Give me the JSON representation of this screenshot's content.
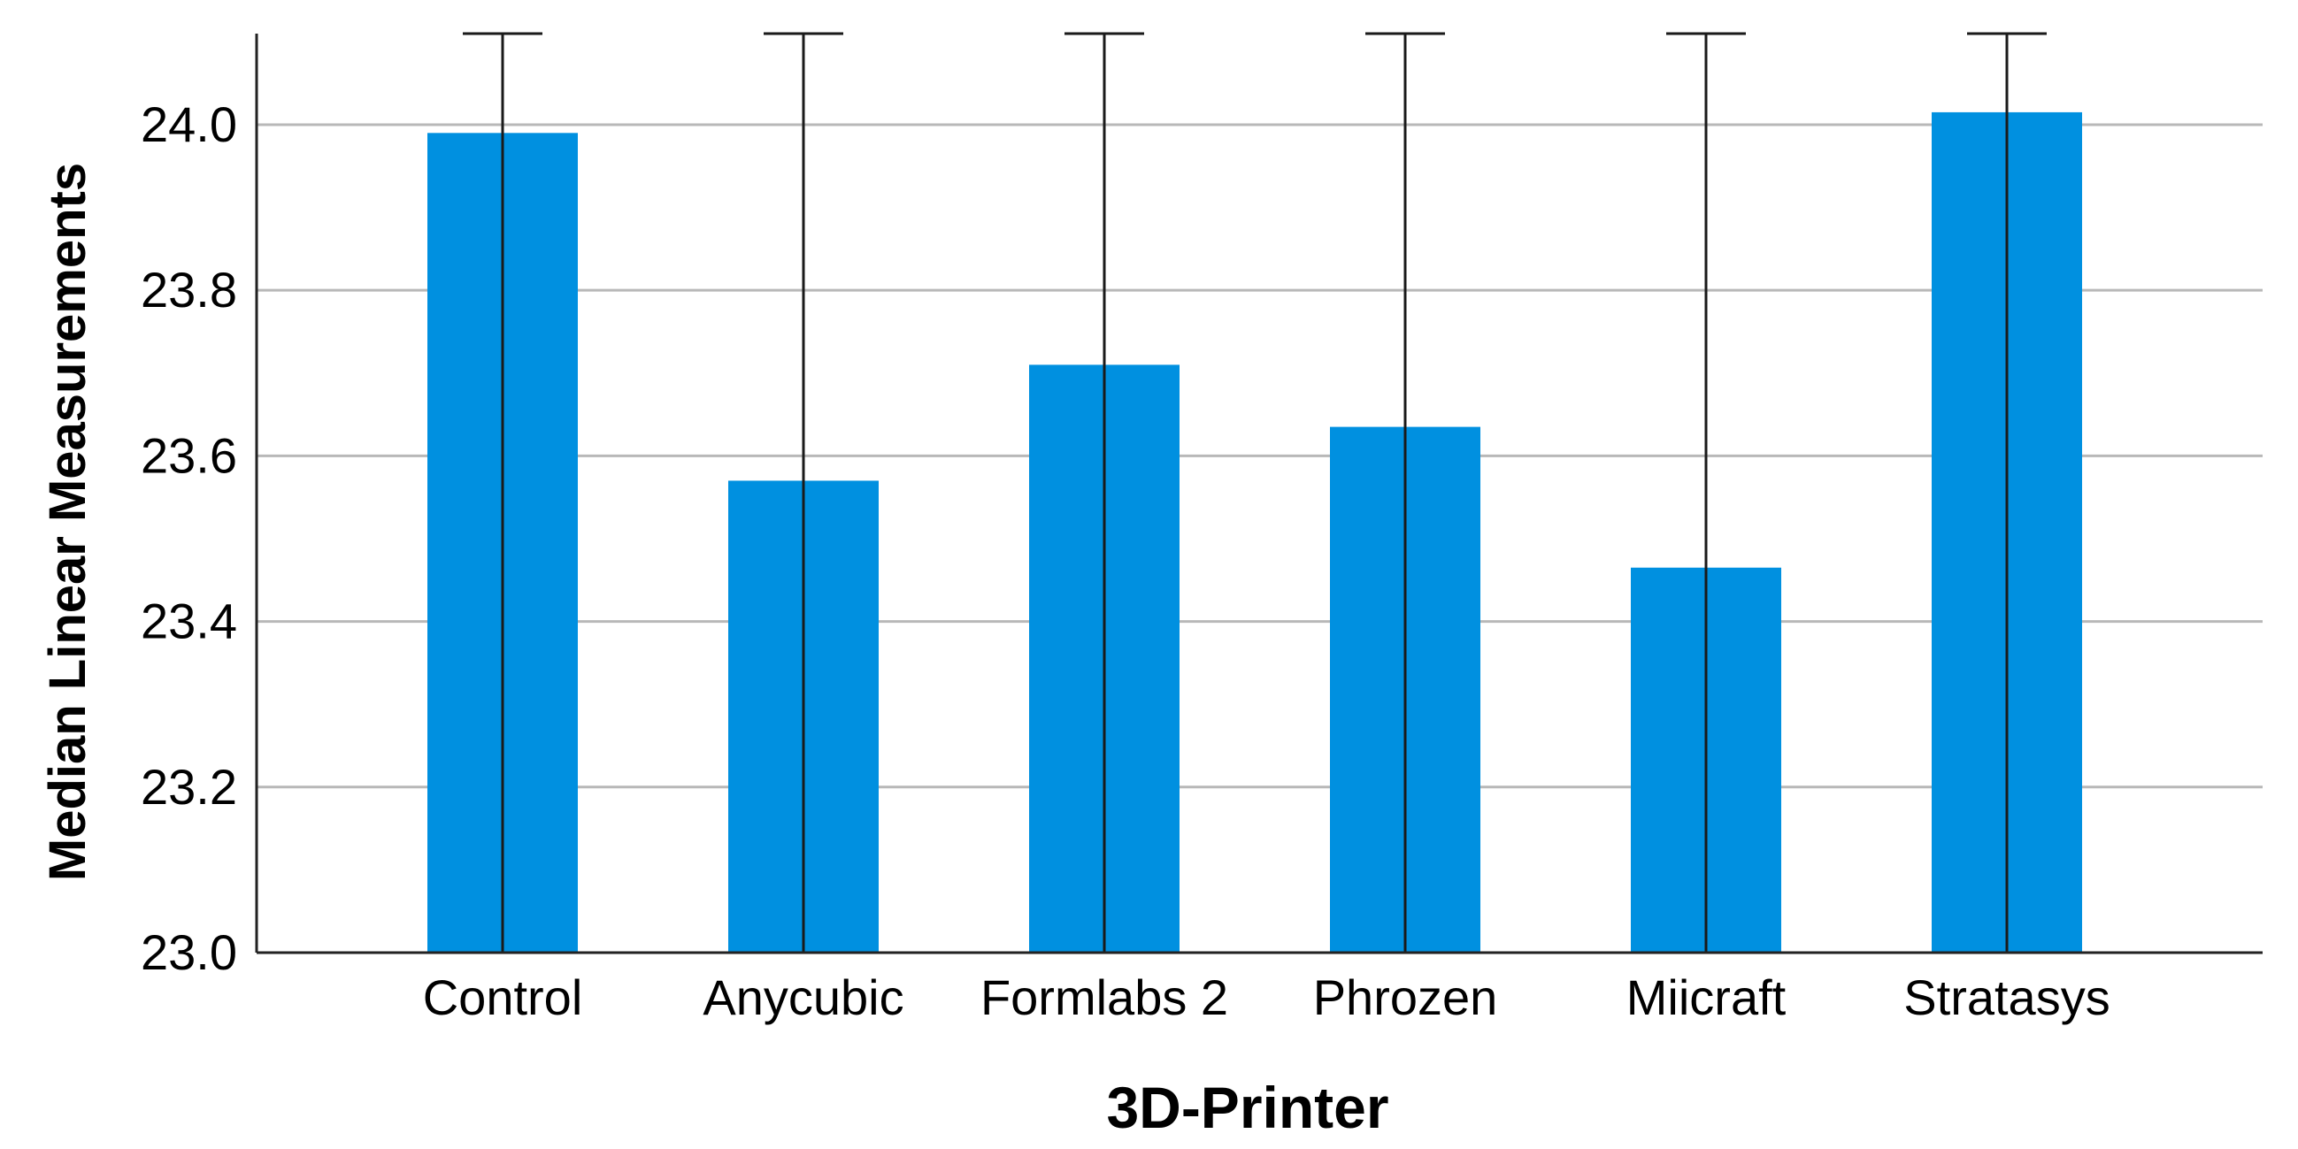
{
  "chart_data": {
    "type": "bar",
    "title": "",
    "xlabel": "3D-Printer",
    "ylabel": "Median Linear Measurements",
    "categories": [
      "Control",
      "Anycubic",
      "Formlabs 2",
      "Phrozen",
      "Miicraft",
      "Stratasys"
    ],
    "values": [
      23.99,
      23.57,
      23.71,
      23.635,
      23.465,
      24.015
    ],
    "error_bars": {
      "lower": [
        23.0,
        23.0,
        23.0,
        23.0,
        23.0,
        23.0
      ],
      "upper": [
        24.11,
        24.11,
        24.11,
        24.11,
        24.11,
        24.11
      ]
    },
    "ylim": [
      23.0,
      24.11
    ],
    "yticks": [
      23.0,
      23.2,
      23.4,
      23.6,
      23.8,
      24.0
    ],
    "ytick_labels": [
      "23.0",
      "23.2",
      "23.4",
      "23.6",
      "23.8",
      "24.0"
    ],
    "grid": "horizontal",
    "legend": "none",
    "colors": {
      "bar": "#0090e0",
      "error_bar": "#1a1a1a",
      "grid": "#b8b8b8",
      "axis": "#222222"
    }
  }
}
